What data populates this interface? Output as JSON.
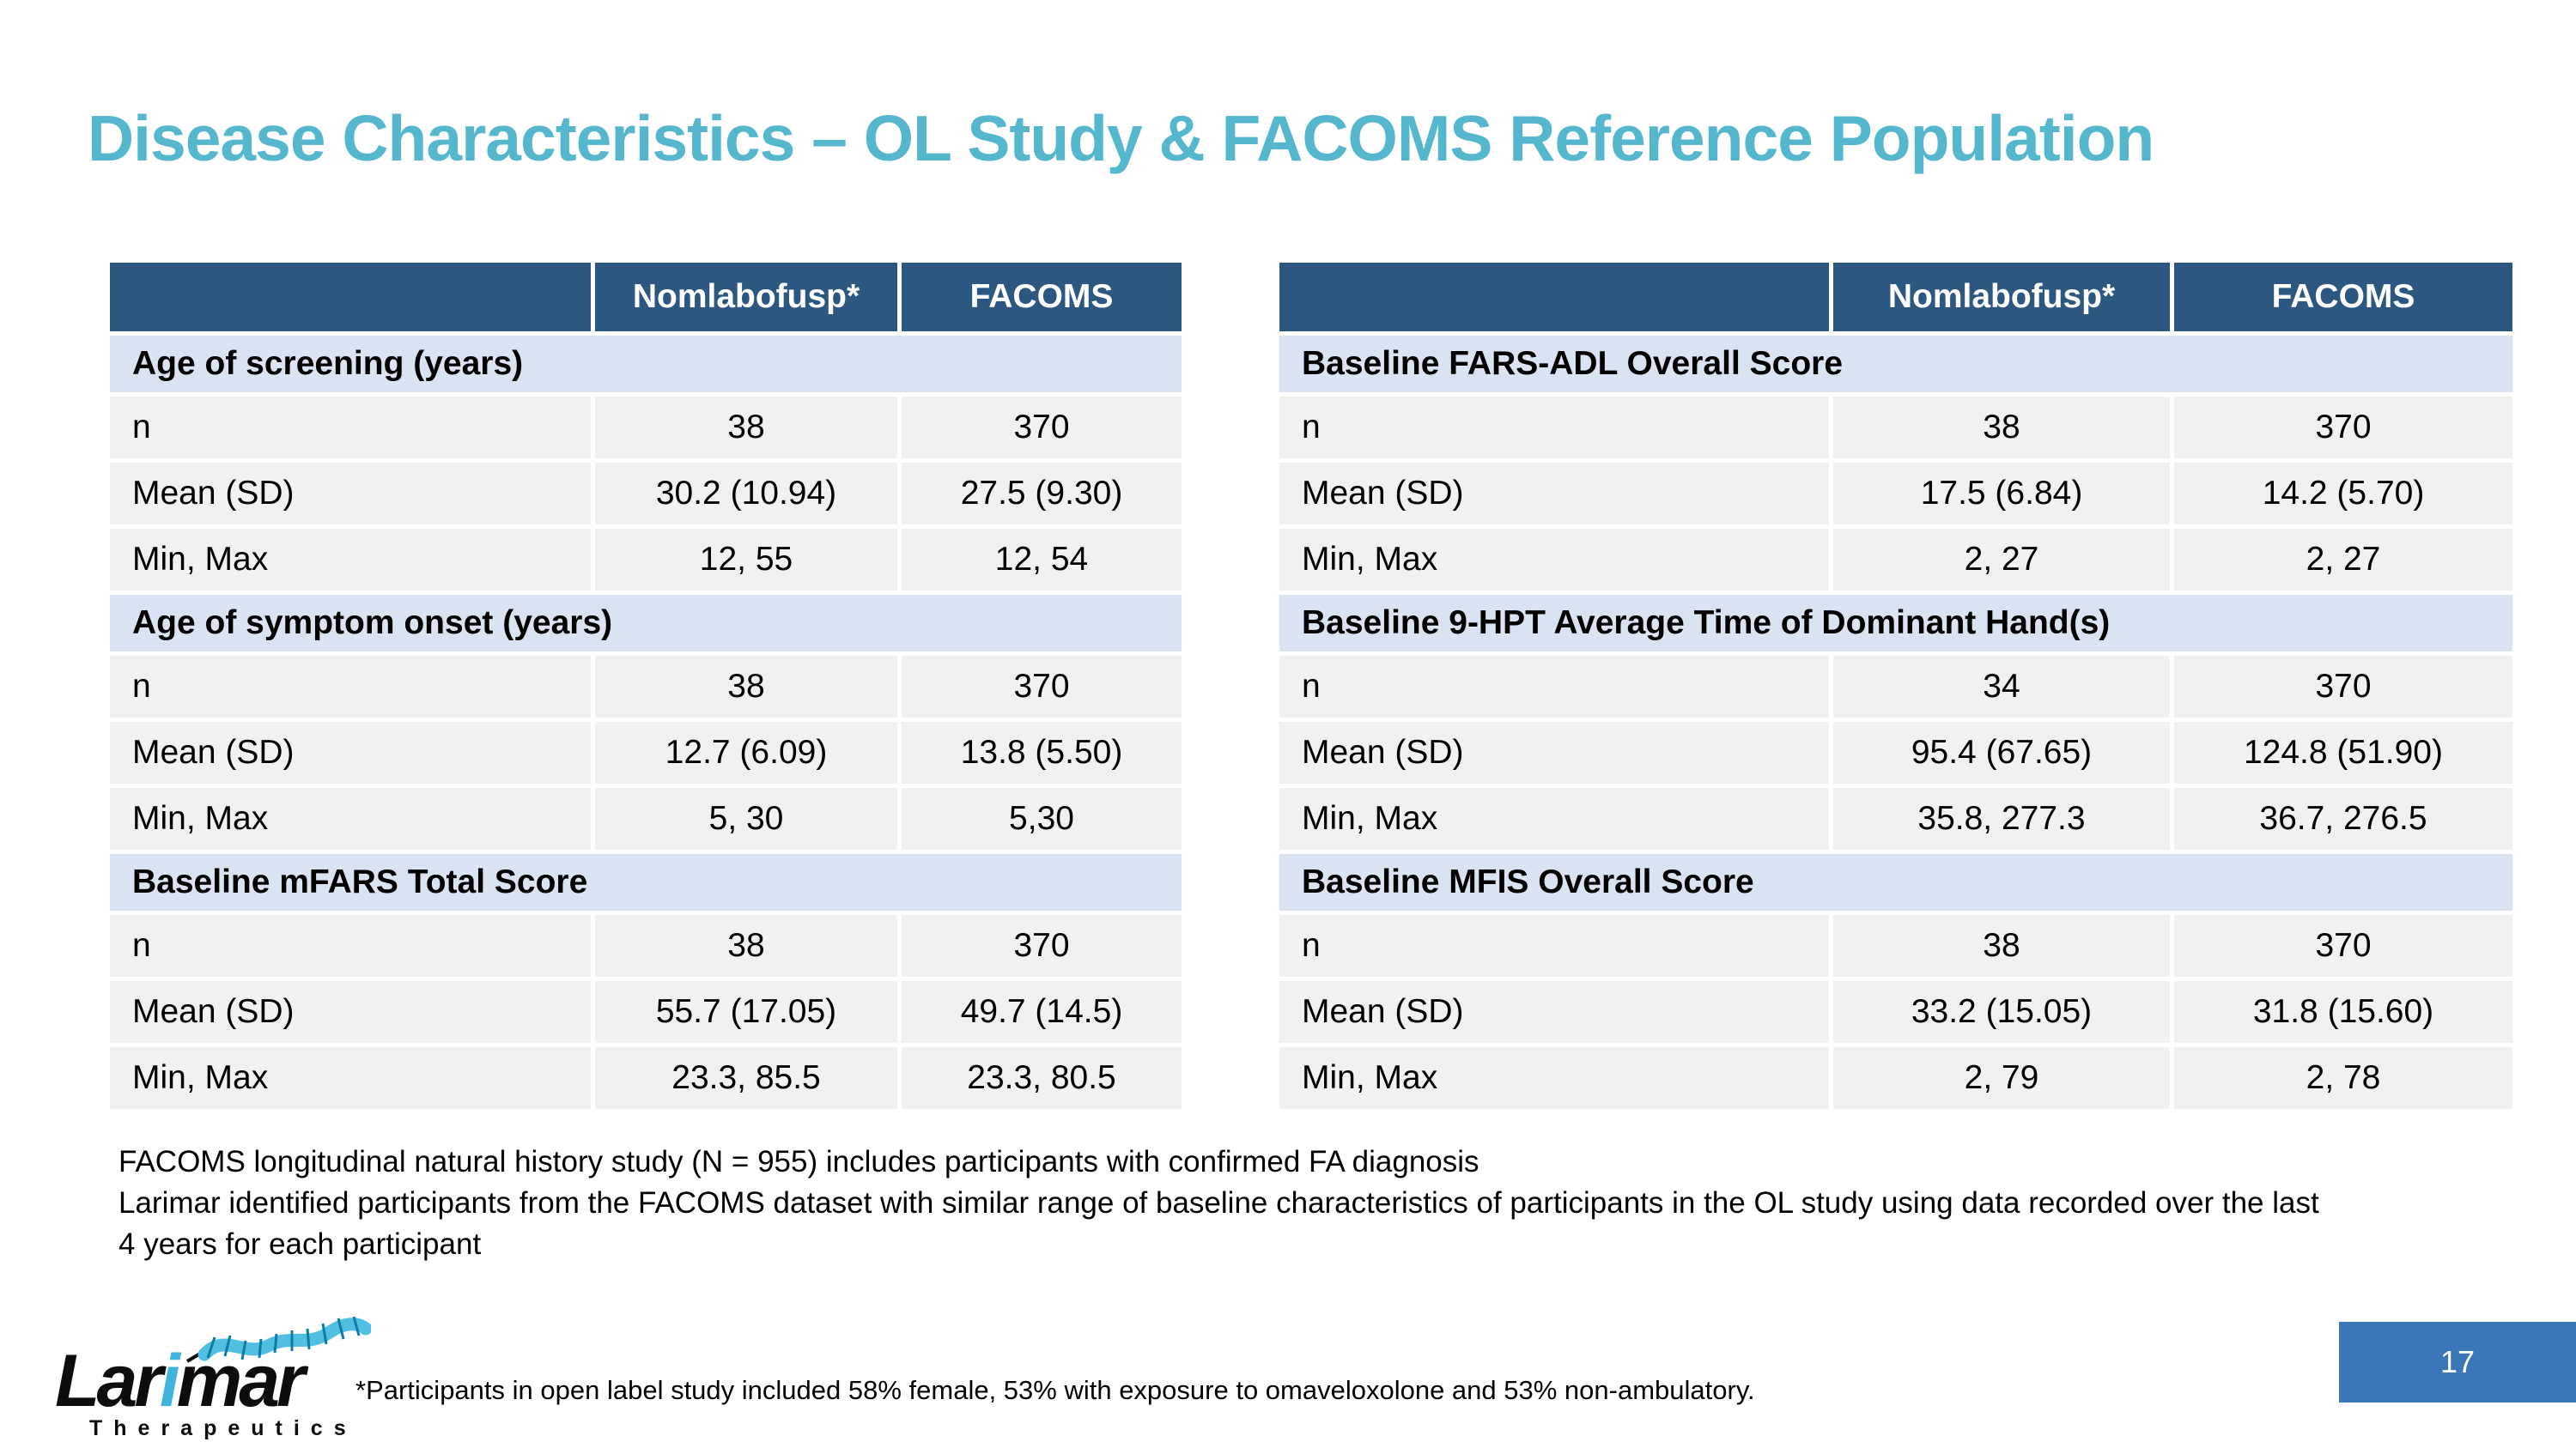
{
  "title": "Disease Characteristics – OL Study & FACOMS Reference Population",
  "tables": [
    {
      "columns": [
        "",
        "Nomlabofusp*",
        "FACOMS"
      ],
      "sections": [
        {
          "title": "Age of screening (years)",
          "rows": [
            [
              "n",
              "38",
              "370"
            ],
            [
              "Mean (SD)",
              "30.2 (10.94)",
              "27.5 (9.30)"
            ],
            [
              "Min, Max",
              "12, 55",
              "12, 54"
            ]
          ]
        },
        {
          "title": "Age of symptom onset (years)",
          "rows": [
            [
              "n",
              "38",
              "370"
            ],
            [
              "Mean (SD)",
              "12.7 (6.09)",
              "13.8 (5.50)"
            ],
            [
              "Min, Max",
              "5, 30",
              "5,30"
            ]
          ]
        },
        {
          "title": "Baseline mFARS Total Score",
          "rows": [
            [
              "n",
              "38",
              "370"
            ],
            [
              "Mean (SD)",
              "55.7 (17.05)",
              "49.7 (14.5)"
            ],
            [
              "Min, Max",
              "23.3, 85.5",
              "23.3, 80.5"
            ]
          ]
        }
      ]
    },
    {
      "columns": [
        "",
        "Nomlabofusp*",
        "FACOMS"
      ],
      "sections": [
        {
          "title": "Baseline FARS-ADL Overall Score",
          "rows": [
            [
              "n",
              "38",
              "370"
            ],
            [
              "Mean (SD)",
              "17.5 (6.84)",
              "14.2 (5.70)"
            ],
            [
              "Min, Max",
              "2, 27",
              "2, 27"
            ]
          ]
        },
        {
          "title": "Baseline 9-HPT Average Time of Dominant Hand(s)",
          "rows": [
            [
              "n",
              "34",
              "370"
            ],
            [
              "Mean (SD)",
              "95.4 (67.65)",
              "124.8 (51.90)"
            ],
            [
              "Min, Max",
              "35.8, 277.3",
              "36.7, 276.5"
            ]
          ]
        },
        {
          "title": "Baseline MFIS Overall Score",
          "rows": [
            [
              "n",
              "38",
              "370"
            ],
            [
              "Mean (SD)",
              "33.2 (15.05)",
              "31.8 (15.60)"
            ],
            [
              "Min, Max",
              "2, 79",
              "2, 78"
            ]
          ]
        }
      ]
    }
  ],
  "notes": {
    "lines": [
      "FACOMS longitudinal natural history study (N = 955) includes participants with confirmed FA diagnosis",
      "Larimar identified participants from the FACOMS dataset with similar range of baseline characteristics of participants in the OL study using data recorded over the last",
      "4 years for each participant"
    ]
  },
  "footer": {
    "asterisk_note": "*Participants in open label study included 58% female, 53% with exposure to omaveloxolone and 53% non-ambulatory.",
    "page_number": "17",
    "logo": {
      "word_start": "Lar",
      "word_accent": "i",
      "word_end": "mar",
      "subtitle": "Therapeutics"
    }
  },
  "colors": {
    "title_teal": "#55B7CD",
    "table_header_blue": "#2C5781",
    "section_band_blue": "#D9E3F1",
    "data_row_gray": "#F1F1F1",
    "page_badge_blue": "#3B76B8",
    "logo_cyan": "#3FB4DC"
  }
}
